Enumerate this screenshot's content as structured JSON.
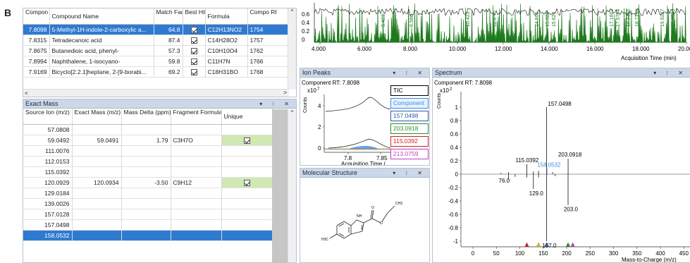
{
  "figure_label": "B",
  "compound_table": {
    "headers": [
      "Compon RT",
      "Compound Name",
      "Match Factor",
      "Best Hit",
      "Formula",
      "Compo RI"
    ],
    "rows": [
      {
        "rt": "7.8098",
        "name": "5-Methyl-1H-indole-2-carboxylic a...",
        "match": "64.8",
        "best": true,
        "formula": "C12H13NO2",
        "ri": "1754",
        "selected": true
      },
      {
        "rt": "7.8315",
        "name": "Tetradecanoic acid",
        "match": "87.4",
        "best": true,
        "formula": "C14H28O2",
        "ri": "1757",
        "selected": false
      },
      {
        "rt": "7.8675",
        "name": "Butanedioic acid, phenyl-",
        "match": "57.3",
        "best": true,
        "formula": "C10H10O4",
        "ri": "1762",
        "selected": false
      },
      {
        "rt": "7.8994",
        "name": "Naphthalene, 1-isocyano-",
        "match": "59.8",
        "best": true,
        "formula": "C11H7N",
        "ri": "1766",
        "selected": false
      },
      {
        "rt": "7.9169",
        "name": "Bicyclo[2.2.1]heptane, 2-[9-borabi...",
        "match": "69.2",
        "best": true,
        "formula": "C18H31BO",
        "ri": "1768",
        "selected": false
      }
    ]
  },
  "exact_mass": {
    "title": "Exact Mass",
    "headers": [
      "Source Ion (m/z)",
      "Exact Mass (m/z)",
      "Mass Delta (ppm)",
      "Fragment Formula",
      "Unique"
    ],
    "rows": [
      {
        "ion": "57.0808",
        "exact": "",
        "delta": "",
        "formula": "",
        "unique": false,
        "selected": false
      },
      {
        "ion": "59.0492",
        "exact": "59.0491",
        "delta": "1.79",
        "formula": "C3H7O",
        "unique": true,
        "selected": false
      },
      {
        "ion": "111.0076",
        "exact": "",
        "delta": "",
        "formula": "",
        "unique": false,
        "selected": false
      },
      {
        "ion": "112.0153",
        "exact": "",
        "delta": "",
        "formula": "",
        "unique": false,
        "selected": false
      },
      {
        "ion": "115.0392",
        "exact": "",
        "delta": "",
        "formula": "",
        "unique": false,
        "selected": false
      },
      {
        "ion": "120.0929",
        "exact": "120.0934",
        "delta": "-3.50",
        "formula": "C9H12",
        "unique": true,
        "selected": false
      },
      {
        "ion": "129.0184",
        "exact": "",
        "delta": "",
        "formula": "",
        "unique": false,
        "selected": false
      },
      {
        "ion": "139.0026",
        "exact": "",
        "delta": "",
        "formula": "",
        "unique": false,
        "selected": false
      },
      {
        "ion": "157.0128",
        "exact": "",
        "delta": "",
        "formula": "",
        "unique": false,
        "selected": false
      },
      {
        "ion": "157.0498",
        "exact": "",
        "delta": "",
        "formula": "",
        "unique": false,
        "selected": false
      },
      {
        "ion": "158.0532",
        "exact": "",
        "delta": "",
        "formula": "",
        "unique": false,
        "selected": true
      }
    ]
  },
  "tic_plot": {
    "y_ticks": [
      "0.6",
      "0.4",
      "0.2",
      "0"
    ],
    "x_ticks": [
      "4.000",
      "6.000",
      "8.000",
      "10.000",
      "12.000",
      "14.000",
      "16.000",
      "18.000",
      "20.000"
    ],
    "xlabel": "Acquisition Time (min)",
    "peak_labels": [
      "5.423",
      "6.586",
      "10.423",
      "11.6",
      "14.905",
      "15.026",
      "15.620",
      "17.1602",
      "17.5704",
      "18.2456",
      "18.7188",
      "19.9287",
      "20.4883"
    ]
  },
  "ion_peaks": {
    "title": "Ion Peaks",
    "component_rt": "Component RT: 7.8098",
    "y_multiplier": "x10",
    "y_exp": "7",
    "ylabel": "Counts",
    "y_ticks": [
      "4",
      "2",
      "0"
    ],
    "x_ticks": [
      "7.8",
      "7.85"
    ],
    "xlabel": "Acquisition Time (...",
    "legend": [
      {
        "label": "TIC",
        "color": "#000000"
      },
      {
        "label": "Component",
        "color": "#3a8ee6"
      },
      {
        "label": "157.0498",
        "color": "#2a5aa8"
      },
      {
        "label": "203.0918",
        "color": "#2e8b2e"
      },
      {
        "label": "115.0392",
        "color": "#d02020"
      },
      {
        "label": "213.0759",
        "color": "#c040c0"
      }
    ]
  },
  "molecule": {
    "title": "Molecular Structure",
    "atoms": [
      "NH",
      "O",
      "O",
      "CH3",
      "H3C"
    ]
  },
  "spectrum": {
    "title": "Spectrum",
    "component_rt": "Component RT: 7.8098",
    "y_multiplier": "x10",
    "y_exp": "2",
    "ylabel": "Counts",
    "y_ticks": [
      "1",
      "0.8",
      "0.6",
      "0.4",
      "0.2",
      "0",
      "-0.2",
      "-0.4",
      "-0.6",
      "-0.8",
      "-1"
    ],
    "x_ticks": [
      "0",
      "50",
      "100",
      "150",
      "200",
      "250",
      "300",
      "350",
      "400",
      "450"
    ],
    "xlabel": "Mass-to-Charge (m/z)",
    "peak_labels": {
      "top": "157.0498",
      "p203": "203.0918",
      "p115": "115.0392",
      "p158": "158.0532",
      "p76": "76.0",
      "p129": "129.0",
      "p203n": "203.0",
      "p157n": "157.0"
    }
  },
  "panel_controls": "▾ ⁝ ✕"
}
